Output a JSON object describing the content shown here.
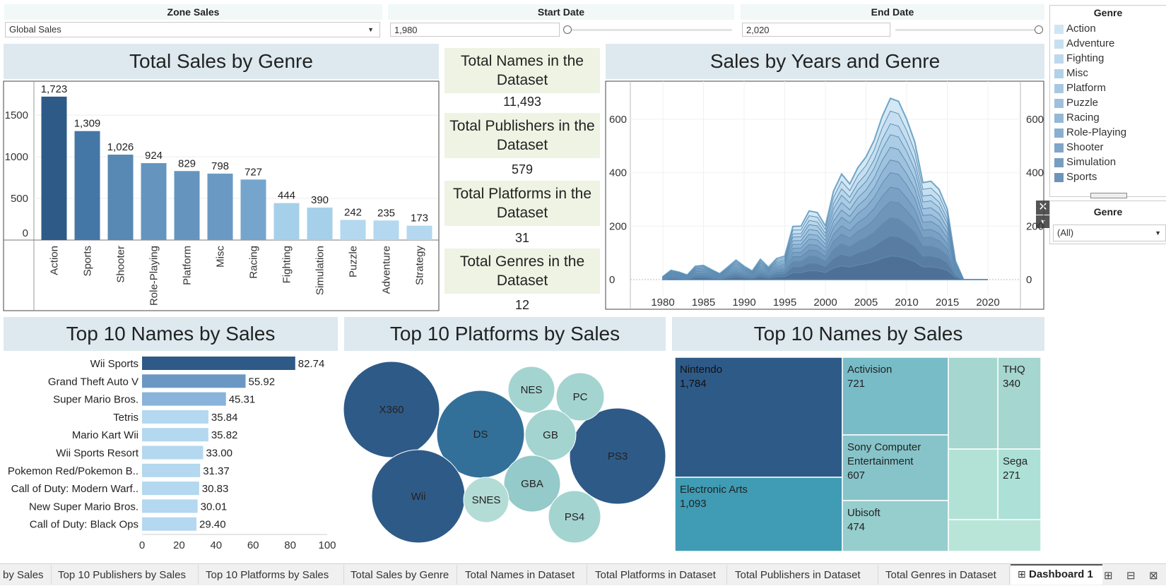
{
  "filters": {
    "zone": {
      "label": "Zone Sales",
      "value": "Global Sales"
    },
    "start": {
      "label": "Start Date",
      "value": "1,980"
    },
    "end": {
      "label": "End Date",
      "value": "2,020"
    }
  },
  "genre_legend": {
    "title": "Genre",
    "items": [
      {
        "label": "Action",
        "color": "#cfe5f3"
      },
      {
        "label": "Adventure",
        "color": "#c6e0f0"
      },
      {
        "label": "Fighting",
        "color": "#bcd8ec"
      },
      {
        "label": "Misc",
        "color": "#b2d0e7"
      },
      {
        "label": "Platform",
        "color": "#a8c8e2"
      },
      {
        "label": "Puzzle",
        "color": "#9ec0dc"
      },
      {
        "label": "Racing",
        "color": "#94b8d6"
      },
      {
        "label": "Role-Playing",
        "color": "#8aafcf"
      },
      {
        "label": "Shooter",
        "color": "#80a6c8"
      },
      {
        "label": "Simulation",
        "color": "#779dc1"
      },
      {
        "label": "Sports",
        "color": "#6d94ba"
      },
      {
        "label": "Strategy",
        "color": "#638bb2"
      }
    ]
  },
  "genre_filter": {
    "title": "Genre",
    "value": "(All)"
  },
  "kpis": [
    {
      "title": "Total Names in the Dataset",
      "value": "11,493"
    },
    {
      "title": "Total Publishers in the Dataset",
      "value": "579"
    },
    {
      "title": "Total Platforms in the Dataset",
      "value": "31"
    },
    {
      "title": "Total Genres in the Dataset",
      "value": "12"
    }
  ],
  "headers": {
    "sales_by_genre": "Total Sales by Genre",
    "years_genre": "Sales by Years and Genre",
    "top_names": "Top 10 Names by Sales",
    "top_platforms": "Top 10 Platforms by Sales",
    "top_publishers": "Top 10 Names by Sales"
  },
  "chart_data": [
    {
      "type": "bar",
      "title": "Total Sales by Genre",
      "categories": [
        "Action",
        "Sports",
        "Shooter",
        "Role-Playing",
        "Platform",
        "Misc",
        "Racing",
        "Fighting",
        "Simulation",
        "Puzzle",
        "Adventure",
        "Strategy"
      ],
      "values": [
        1723,
        1309,
        1026,
        924,
        829,
        798,
        727,
        444,
        390,
        242,
        235,
        173
      ],
      "value_labels": [
        "1,723",
        "1,309",
        "1,026",
        "924",
        "829",
        "798",
        "727",
        "444",
        "390",
        "242",
        "235",
        "173"
      ],
      "yticks": [
        "1500",
        "1000",
        "500",
        "0"
      ],
      "ylim": [
        0,
        1900
      ]
    },
    {
      "type": "area",
      "title": "Sales by Years and Genre",
      "stacked": true,
      "x": [
        1980,
        1981,
        1982,
        1983,
        1984,
        1985,
        1986,
        1987,
        1988,
        1989,
        1990,
        1991,
        1992,
        1993,
        1994,
        1995,
        1996,
        1997,
        1998,
        1999,
        2000,
        2001,
        2002,
        2003,
        2004,
        2005,
        2006,
        2007,
        2008,
        2009,
        2010,
        2011,
        2012,
        2013,
        2014,
        2015,
        2016,
        2017,
        2020
      ],
      "total": [
        11,
        35,
        28,
        17,
        50,
        53,
        37,
        22,
        47,
        73,
        50,
        32,
        76,
        46,
        79,
        88,
        199,
        200,
        257,
        251,
        201,
        331,
        395,
        358,
        419,
        459,
        521,
        611,
        678,
        667,
        600,
        515,
        363,
        368,
        337,
        264,
        70,
        0,
        0
      ],
      "xticks": [
        "1980",
        "1985",
        "1990",
        "1995",
        "2000",
        "2005",
        "2010",
        "2015",
        "2020"
      ],
      "yticks": [
        "0",
        "200",
        "400",
        "600"
      ],
      "ylim": [
        0,
        700
      ]
    },
    {
      "type": "bar",
      "orientation": "horizontal",
      "title": "Top 10 Names by Sales",
      "categories": [
        "Wii Sports",
        "Grand Theft Auto V",
        "Super Mario Bros.",
        "Tetris",
        "Mario Kart Wii",
        "Wii Sports Resort",
        "Pokemon Red/Pokemon B..",
        "Call of Duty: Modern Warf..",
        "New Super Mario Bros.",
        "Call of Duty: Black Ops"
      ],
      "values": [
        82.74,
        55.92,
        45.31,
        35.84,
        35.82,
        33.0,
        31.37,
        30.83,
        30.01,
        29.4
      ],
      "value_labels": [
        "82.74",
        "55.92",
        "45.31",
        "35.84",
        "35.82",
        "33.00",
        "31.37",
        "30.83",
        "30.01",
        "29.40"
      ],
      "xticks": [
        "0",
        "20",
        "40",
        "60",
        "80",
        "100"
      ],
      "xlim": [
        0,
        100
      ]
    },
    {
      "type": "bubble",
      "title": "Top 10 Platforms by Sales",
      "bubbles": [
        {
          "label": "X360",
          "color": "#2e5a87"
        },
        {
          "label": "DS",
          "color": "#337099"
        },
        {
          "label": "Wii",
          "color": "#2e5a87"
        },
        {
          "label": "PS3",
          "color": "#2e5a87"
        },
        {
          "label": "NES",
          "color": "#a4d4d0"
        },
        {
          "label": "PC",
          "color": "#a4d4d0"
        },
        {
          "label": "GB",
          "color": "#a4d4d0"
        },
        {
          "label": "GBA",
          "color": "#94cac9"
        },
        {
          "label": "SNES",
          "color": "#b3dcd6"
        },
        {
          "label": "PS4",
          "color": "#a4d4d0"
        }
      ]
    },
    {
      "type": "treemap",
      "title": "Top 10 Names by Sales",
      "items": [
        {
          "label": "Nintendo",
          "value": "1,784",
          "color": "#2e5a87"
        },
        {
          "label": "Electronic Arts",
          "value": "1,093",
          "color": "#409bb4"
        },
        {
          "label": "Activision",
          "value": "721",
          "color": "#78bcc7"
        },
        {
          "label": "Sony Computer Entertainment",
          "value": "607",
          "color": "#87c4ca"
        },
        {
          "label": "Ubisoft",
          "value": "474",
          "color": "#96cdcd"
        },
        {
          "label": "THQ",
          "value": "340",
          "color": "#a5d6cf"
        },
        {
          "label": "Sega",
          "value": "271",
          "color": "#ade0d6"
        },
        {
          "label": "",
          "value": "",
          "color": "#a5d6cf"
        },
        {
          "label": "",
          "value": "",
          "color": "#b2e2d6"
        },
        {
          "label": "",
          "value": "",
          "color": "#b9e5d9"
        }
      ]
    }
  ],
  "tabs": [
    "by Sales",
    "Top 10 Publishers by Sales",
    "Top 10 Platforms by Sales",
    "Total Sales by Genre",
    "Total Names in Dataset",
    "Total Platforms in Dataset",
    "Total Publishers in Dataset",
    "Total Genres in Dataset",
    "Dashboard 1"
  ],
  "tab_icons": [
    "new-worksheet-icon",
    "new-dashboard-icon",
    "new-story-icon"
  ]
}
